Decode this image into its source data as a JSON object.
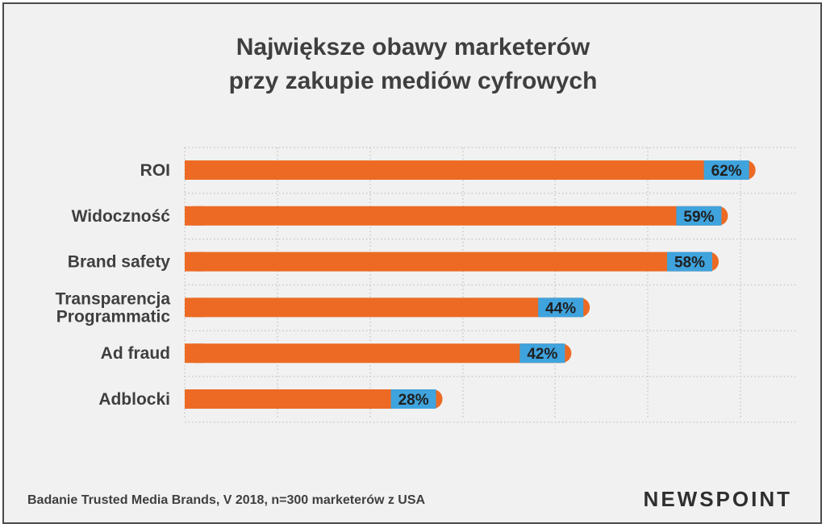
{
  "title_line1": "Największe obawy marketerów",
  "title_line2": "przy zakupie mediów cyfrowych",
  "footer": "Badanie Trusted Media Brands, V 2018, n=300 marketerów z USA",
  "logo": "NEWSPOINT",
  "colors": {
    "bar": "#ec6a24",
    "label_box": "#3fa3dd",
    "text": "#3f3f3f",
    "background": "#f1f1f1",
    "grid": "#b8b8b8"
  },
  "chart_data": {
    "type": "bar",
    "orientation": "horizontal",
    "categories": [
      [
        "ROI"
      ],
      [
        "Widoczność"
      ],
      [
        "Brand safety"
      ],
      [
        "Transparencja",
        "Programmatic"
      ],
      [
        "Ad fraud"
      ],
      [
        "Adblocki"
      ]
    ],
    "values": [
      62,
      59,
      58,
      44,
      42,
      28
    ],
    "data_labels": [
      "62%",
      "59%",
      "58%",
      "44%",
      "42%",
      "28%"
    ],
    "xlim": [
      0,
      66.5
    ],
    "grid": true
  }
}
